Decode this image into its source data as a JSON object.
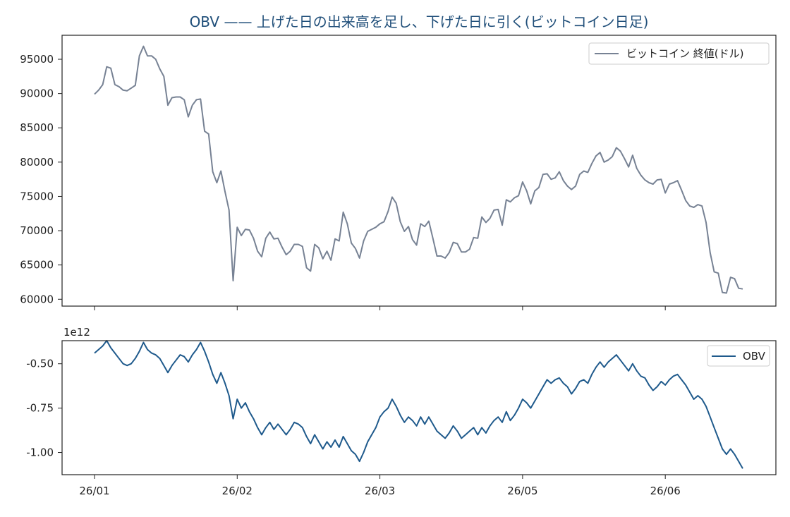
{
  "chart_data": [
    {
      "type": "line",
      "title": "OBV —— 上げた日の出来高を足し、下げた日に引く(ビットコイン日足)",
      "legend": "top-right",
      "ylim": [
        59000,
        98500
      ],
      "yticks": [
        60000,
        65000,
        70000,
        75000,
        80000,
        85000,
        90000,
        95000
      ],
      "series": [
        {
          "name": "ビットコイン 終値(ドル)",
          "color": "#778294",
          "values": [
            89900,
            90500,
            91300,
            93900,
            93700,
            91300,
            91000,
            90500,
            90400,
            90800,
            91200,
            95500,
            96900,
            95500,
            95500,
            95000,
            93600,
            92500,
            88300,
            89400,
            89500,
            89500,
            89100,
            86600,
            88300,
            89100,
            89200,
            84500,
            84100,
            78600,
            77000,
            78700,
            75700,
            73000,
            62700,
            70500,
            69300,
            70200,
            70100,
            68900,
            67000,
            66200,
            68900,
            69800,
            68800,
            68900,
            67600,
            66500,
            67000,
            68000,
            68000,
            67700,
            64600,
            64100,
            68000,
            67500,
            65900,
            67000,
            65700,
            68800,
            68500,
            72700,
            71000,
            68200,
            67400,
            66000,
            68500,
            69900,
            70200,
            70500,
            71000,
            71300,
            72800,
            74900,
            74000,
            71300,
            69900,
            70600,
            68700,
            67900,
            71000,
            70600,
            71400,
            68900,
            66300,
            66300,
            66000,
            66800,
            68300,
            68100,
            66900,
            66900,
            67300,
            69000,
            68900,
            72000,
            71200,
            71800,
            73000,
            73100,
            70800,
            74500,
            74200,
            74800,
            75100,
            77100,
            75800,
            73900,
            75800,
            76300,
            78200,
            78300,
            77500,
            77700,
            78600,
            77300,
            76500,
            76000,
            76500,
            78200,
            78700,
            78500,
            79800,
            80900,
            81400,
            80000,
            80300,
            80800,
            82100,
            81600,
            80500,
            79300,
            81000,
            79100,
            78100,
            77400,
            77000,
            76800,
            77400,
            77500,
            75500,
            76800,
            77000,
            77300,
            75900,
            74400,
            73600,
            73400,
            73800,
            73600,
            71200,
            66800,
            64000,
            63800,
            61000,
            60900,
            63200,
            63000,
            61600,
            61500
          ]
        }
      ]
    },
    {
      "type": "line",
      "offset_label": "1e12",
      "legend": "top-right",
      "ylim": [
        -1.125,
        -0.37
      ],
      "yticks": [
        -1.0,
        -0.75,
        -0.5
      ],
      "ytick_labels": [
        "-1.00",
        "-0.75",
        "-0.50"
      ],
      "x_ticks": [
        {
          "index": 0,
          "label": "26/01"
        },
        {
          "index": 35,
          "label": "26/02"
        },
        {
          "index": 70,
          "label": "26/03"
        },
        {
          "index": 105,
          "label": "26/05"
        },
        {
          "index": 140,
          "label": "26/06"
        }
      ],
      "series": [
        {
          "name": "OBV",
          "color": "#1f5a8c",
          "values": [
            -0.44,
            -0.42,
            -0.4,
            -0.37,
            -0.41,
            -0.44,
            -0.47,
            -0.5,
            -0.51,
            -0.5,
            -0.47,
            -0.43,
            -0.38,
            -0.42,
            -0.44,
            -0.45,
            -0.47,
            -0.51,
            -0.55,
            -0.51,
            -0.48,
            -0.45,
            -0.46,
            -0.49,
            -0.45,
            -0.42,
            -0.38,
            -0.43,
            -0.49,
            -0.56,
            -0.61,
            -0.55,
            -0.61,
            -0.68,
            -0.81,
            -0.7,
            -0.75,
            -0.72,
            -0.77,
            -0.81,
            -0.86,
            -0.9,
            -0.86,
            -0.83,
            -0.87,
            -0.84,
            -0.87,
            -0.9,
            -0.87,
            -0.83,
            -0.84,
            -0.86,
            -0.91,
            -0.95,
            -0.9,
            -0.94,
            -0.98,
            -0.94,
            -0.97,
            -0.93,
            -0.97,
            -0.91,
            -0.95,
            -0.99,
            -1.01,
            -1.05,
            -1.0,
            -0.94,
            -0.9,
            -0.86,
            -0.8,
            -0.77,
            -0.75,
            -0.7,
            -0.74,
            -0.79,
            -0.83,
            -0.8,
            -0.82,
            -0.85,
            -0.8,
            -0.84,
            -0.8,
            -0.84,
            -0.88,
            -0.9,
            -0.92,
            -0.89,
            -0.85,
            -0.88,
            -0.92,
            -0.9,
            -0.88,
            -0.86,
            -0.9,
            -0.86,
            -0.89,
            -0.85,
            -0.82,
            -0.8,
            -0.83,
            -0.77,
            -0.82,
            -0.79,
            -0.75,
            -0.7,
            -0.72,
            -0.75,
            -0.71,
            -0.67,
            -0.63,
            -0.59,
            -0.61,
            -0.59,
            -0.58,
            -0.61,
            -0.63,
            -0.67,
            -0.64,
            -0.6,
            -0.59,
            -0.61,
            -0.56,
            -0.52,
            -0.49,
            -0.52,
            -0.49,
            -0.47,
            -0.45,
            -0.48,
            -0.51,
            -0.54,
            -0.5,
            -0.54,
            -0.57,
            -0.58,
            -0.62,
            -0.65,
            -0.63,
            -0.6,
            -0.62,
            -0.59,
            -0.57,
            -0.56,
            -0.59,
            -0.62,
            -0.66,
            -0.7,
            -0.68,
            -0.7,
            -0.74,
            -0.8,
            -0.86,
            -0.92,
            -0.98,
            -1.01,
            -0.98,
            -1.01,
            -1.05,
            -1.09
          ]
        }
      ]
    }
  ]
}
